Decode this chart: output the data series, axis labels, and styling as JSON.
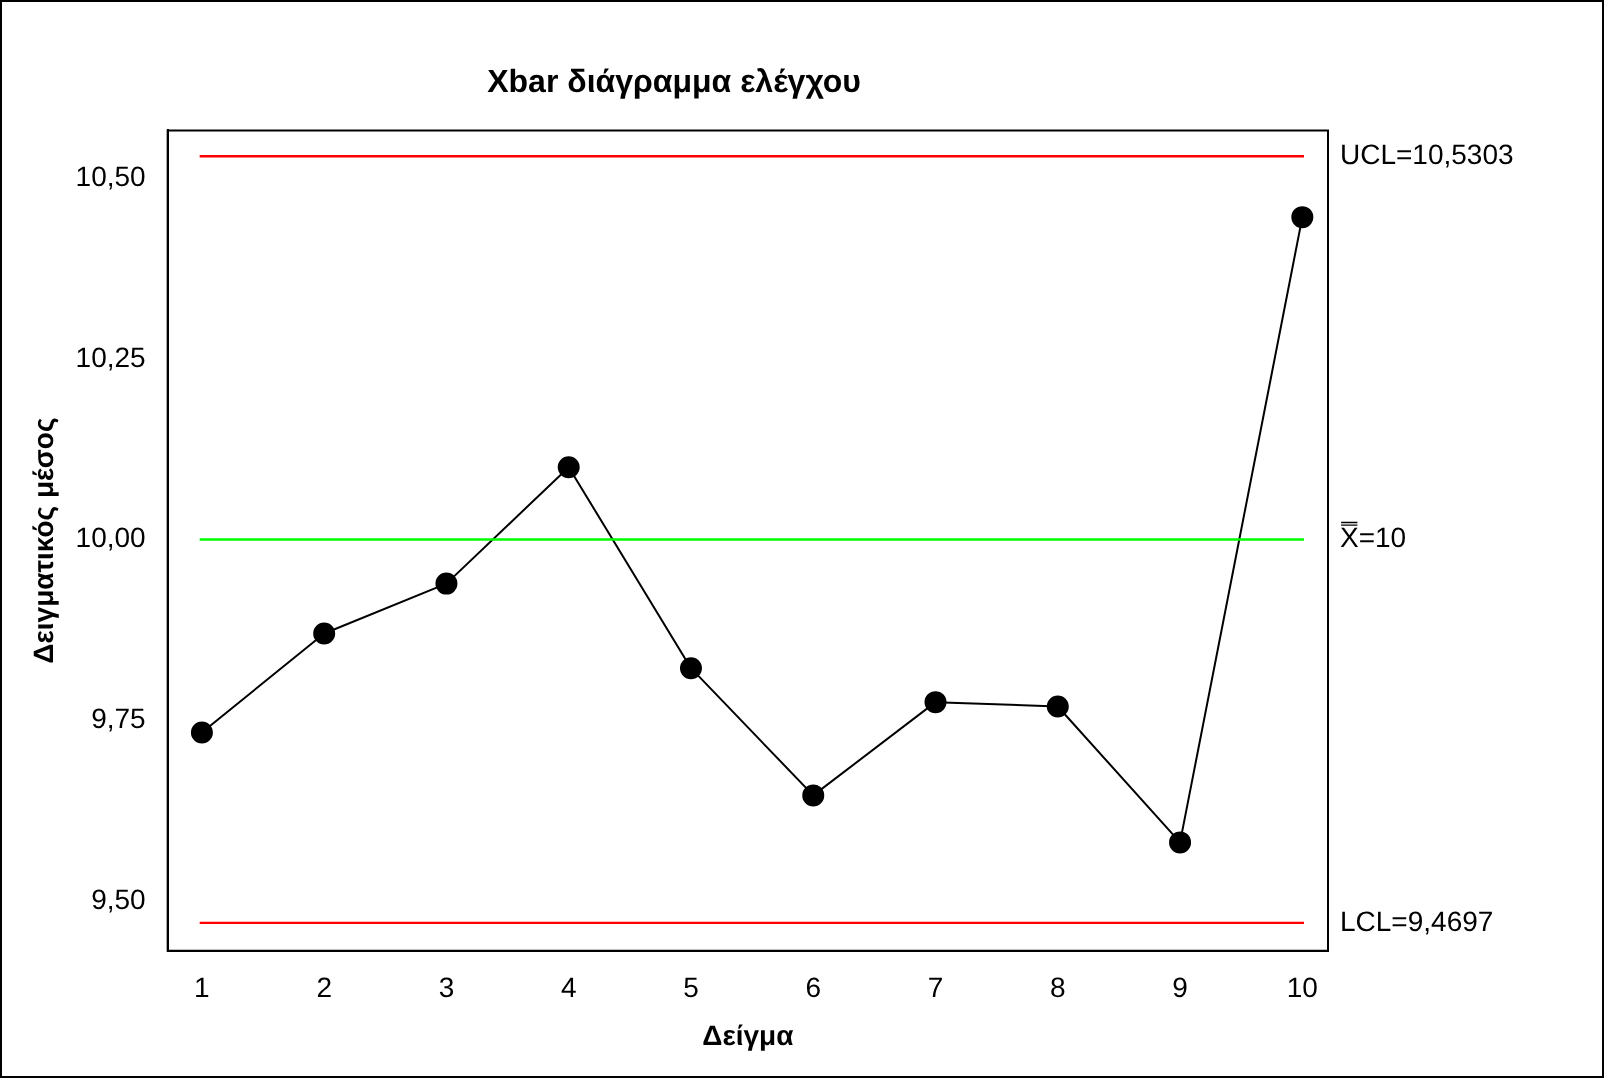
{
  "chart_data": {
    "type": "line",
    "title": "Xbar διάγραμμα ελέγχου",
    "xlabel": "Δείγμα",
    "ylabel": "Δειγματικός μέσος",
    "x": [
      1,
      2,
      3,
      4,
      5,
      6,
      7,
      8,
      9,
      10
    ],
    "series": [
      {
        "color": "#000000",
        "values": [
          9.733,
          9.87,
          9.939,
          10.1,
          9.822,
          9.646,
          9.775,
          9.769,
          9.581,
          10.446
        ]
      }
    ],
    "xlim": [
      0.72,
      10.21
    ],
    "xticks": [
      1,
      2,
      3,
      4,
      5,
      6,
      7,
      8,
      9,
      10
    ],
    "ylim": [
      9.431,
      10.566
    ],
    "yticks": [
      {
        "value": 9.5,
        "label": "9,50"
      },
      {
        "value": 9.75,
        "label": "9,75"
      },
      {
        "value": 10,
        "label": "10,00"
      },
      {
        "value": 10.25,
        "label": "10,25"
      },
      {
        "value": 10.5,
        "label": "10,50"
      }
    ],
    "ref_lines": [
      {
        "axis": "y",
        "value": 10.5303,
        "label": "UCL=10,5303",
        "color": "#ff0000"
      },
      {
        "axis": "y",
        "value": 10,
        "label": "X̿=10",
        "color": "#00ff00"
      },
      {
        "axis": "y",
        "value": 9.4697,
        "label": "LCL=9,4697",
        "color": "#ff0000"
      }
    ],
    "grid": false,
    "legend": false,
    "marker": "circle",
    "line_style": "solid"
  }
}
